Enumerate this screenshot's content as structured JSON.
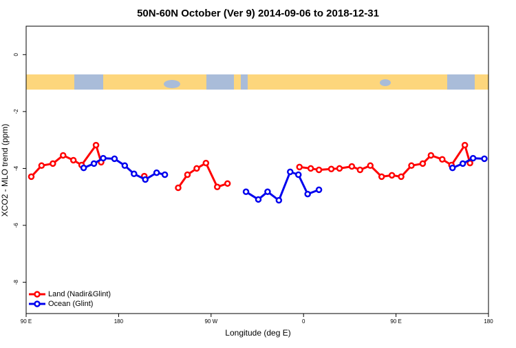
{
  "chart_data": {
    "type": "line",
    "title": "50N-60N October (Ver 9)   2014-09-06 to 2018-12-31",
    "x_label": "Longitude (deg E)",
    "y_label": "XCO2 - MLO trend (ppm)",
    "xlim": [
      90,
      540
    ],
    "ylim": [
      -9.1,
      1.0
    ],
    "xticks": [
      {
        "value": 90,
        "label": "90 E"
      },
      180,
      {
        "value": 270,
        "label": "90 W"
      },
      {
        "value": 360,
        "label": "0"
      },
      {
        "value": 450,
        "label": "90 E"
      },
      {
        "value": 540,
        "label": "180"
      }
    ],
    "yticks": [
      0,
      -2,
      -4,
      -6,
      -8
    ],
    "legend": "bottom-left",
    "series": [
      {
        "name": "Land (Nadir&Glint)",
        "color": "#ff0000",
        "x": [
          95,
          105,
          116,
          126,
          136,
          144,
          158,
          163,
          null,
          205,
          null,
          238,
          247,
          256,
          265,
          276,
          286,
          null,
          356,
          367,
          375,
          387,
          395,
          407,
          415,
          425,
          436,
          446,
          455,
          465,
          476,
          484,
          495,
          504,
          517,
          522
        ],
        "values": [
          -4.29,
          -3.9,
          -3.83,
          -3.54,
          -3.71,
          -3.88,
          -3.18,
          -3.78,
          null,
          -4.27,
          null,
          -4.68,
          -4.22,
          -4.0,
          -3.81,
          -4.65,
          -4.53,
          null,
          -3.95,
          -4.0,
          -4.05,
          -4.02,
          -4.0,
          -3.93,
          -4.05,
          -3.9,
          -4.29,
          -4.24,
          -4.29,
          -3.9,
          -3.83,
          -3.54,
          -3.68,
          -3.88,
          -3.18,
          -3.81
        ]
      },
      {
        "name": "Ocean (Glint)",
        "color": "#0000ee",
        "x": [
          146,
          156,
          165,
          176,
          186,
          195,
          206,
          217,
          225,
          null,
          304,
          316,
          325,
          336,
          347,
          355,
          364,
          375,
          null,
          505,
          515,
          525,
          536
        ],
        "values": [
          -3.98,
          -3.83,
          -3.64,
          -3.66,
          -3.9,
          -4.19,
          -4.39,
          -4.15,
          -4.22,
          null,
          -4.82,
          -5.09,
          -4.82,
          -5.12,
          -4.12,
          -4.22,
          -4.9,
          -4.75,
          null,
          -3.98,
          -3.83,
          -3.64,
          -3.66
        ]
      }
    ]
  }
}
